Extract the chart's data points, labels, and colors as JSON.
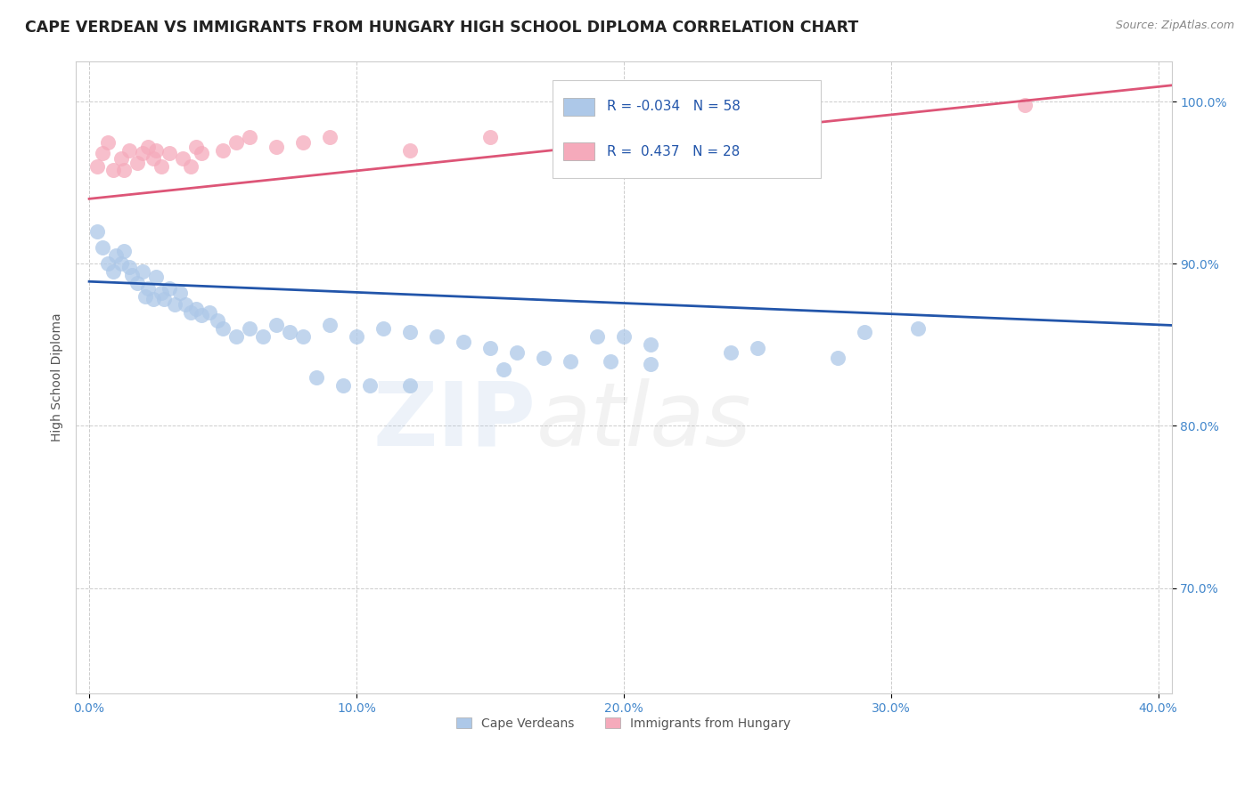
{
  "title": "CAPE VERDEAN VS IMMIGRANTS FROM HUNGARY HIGH SCHOOL DIPLOMA CORRELATION CHART",
  "source_text": "Source: ZipAtlas.com",
  "ylabel": "High School Diploma",
  "x_ticklabels": [
    "0.0%",
    "10.0%",
    "20.0%",
    "30.0%",
    "40.0%"
  ],
  "x_ticks": [
    0.0,
    0.1,
    0.2,
    0.3,
    0.4
  ],
  "y_ticklabels": [
    "70.0%",
    "80.0%",
    "90.0%",
    "100.0%"
  ],
  "y_ticks": [
    0.7,
    0.8,
    0.9,
    1.0
  ],
  "xlim": [
    -0.005,
    0.405
  ],
  "ylim": [
    0.635,
    1.025
  ],
  "legend_labels": [
    "Cape Verdeans",
    "Immigrants from Hungary"
  ],
  "blue_color": "#adc8e8",
  "pink_color": "#f5aabb",
  "blue_line_color": "#2255aa",
  "pink_line_color": "#dd5577",
  "blue_scatter_x": [
    0.003,
    0.005,
    0.007,
    0.009,
    0.01,
    0.012,
    0.013,
    0.015,
    0.016,
    0.018,
    0.02,
    0.021,
    0.022,
    0.024,
    0.025,
    0.027,
    0.028,
    0.03,
    0.032,
    0.034,
    0.036,
    0.038,
    0.04,
    0.042,
    0.045,
    0.048,
    0.05,
    0.055,
    0.06,
    0.065,
    0.07,
    0.075,
    0.08,
    0.09,
    0.1,
    0.11,
    0.12,
    0.13,
    0.14,
    0.15,
    0.16,
    0.17,
    0.19,
    0.2,
    0.21,
    0.24,
    0.25,
    0.28,
    0.29,
    0.31,
    0.12,
    0.085,
    0.095,
    0.105,
    0.195,
    0.21,
    0.155,
    0.18
  ],
  "blue_scatter_y": [
    0.92,
    0.91,
    0.9,
    0.895,
    0.905,
    0.9,
    0.908,
    0.898,
    0.893,
    0.888,
    0.895,
    0.88,
    0.885,
    0.878,
    0.892,
    0.882,
    0.878,
    0.885,
    0.875,
    0.882,
    0.875,
    0.87,
    0.872,
    0.868,
    0.87,
    0.865,
    0.86,
    0.855,
    0.86,
    0.855,
    0.862,
    0.858,
    0.855,
    0.862,
    0.855,
    0.86,
    0.858,
    0.855,
    0.852,
    0.848,
    0.845,
    0.842,
    0.855,
    0.855,
    0.85,
    0.845,
    0.848,
    0.842,
    0.858,
    0.86,
    0.825,
    0.83,
    0.825,
    0.825,
    0.84,
    0.838,
    0.835,
    0.84
  ],
  "pink_scatter_x": [
    0.003,
    0.005,
    0.007,
    0.009,
    0.012,
    0.013,
    0.015,
    0.018,
    0.02,
    0.022,
    0.024,
    0.025,
    0.027,
    0.03,
    0.035,
    0.038,
    0.04,
    0.042,
    0.05,
    0.055,
    0.06,
    0.07,
    0.08,
    0.09,
    0.12,
    0.15,
    0.2,
    0.35
  ],
  "pink_scatter_y": [
    0.96,
    0.968,
    0.975,
    0.958,
    0.965,
    0.958,
    0.97,
    0.962,
    0.968,
    0.972,
    0.965,
    0.97,
    0.96,
    0.968,
    0.965,
    0.96,
    0.972,
    0.968,
    0.97,
    0.975,
    0.978,
    0.972,
    0.975,
    0.978,
    0.97,
    0.978,
    0.982,
    0.998
  ],
  "blue_trendline_x": [
    0.0,
    0.405
  ],
  "blue_trendline_y": [
    0.889,
    0.862
  ],
  "pink_trendline_x": [
    0.0,
    0.405
  ],
  "pink_trendline_y": [
    0.94,
    1.01
  ],
  "grid_color": "#cccccc",
  "bg_color": "#ffffff",
  "title_color": "#222222",
  "title_fontsize": 12.5,
  "tick_fontsize": 10,
  "tick_color": "#4488cc",
  "ylabel_fontsize": 10,
  "ylabel_color": "#555555",
  "source_fontsize": 9,
  "source_color": "#888888",
  "legend_blue_R": "-0.034",
  "legend_blue_N": "58",
  "legend_pink_R": "0.437",
  "legend_pink_N": "28"
}
